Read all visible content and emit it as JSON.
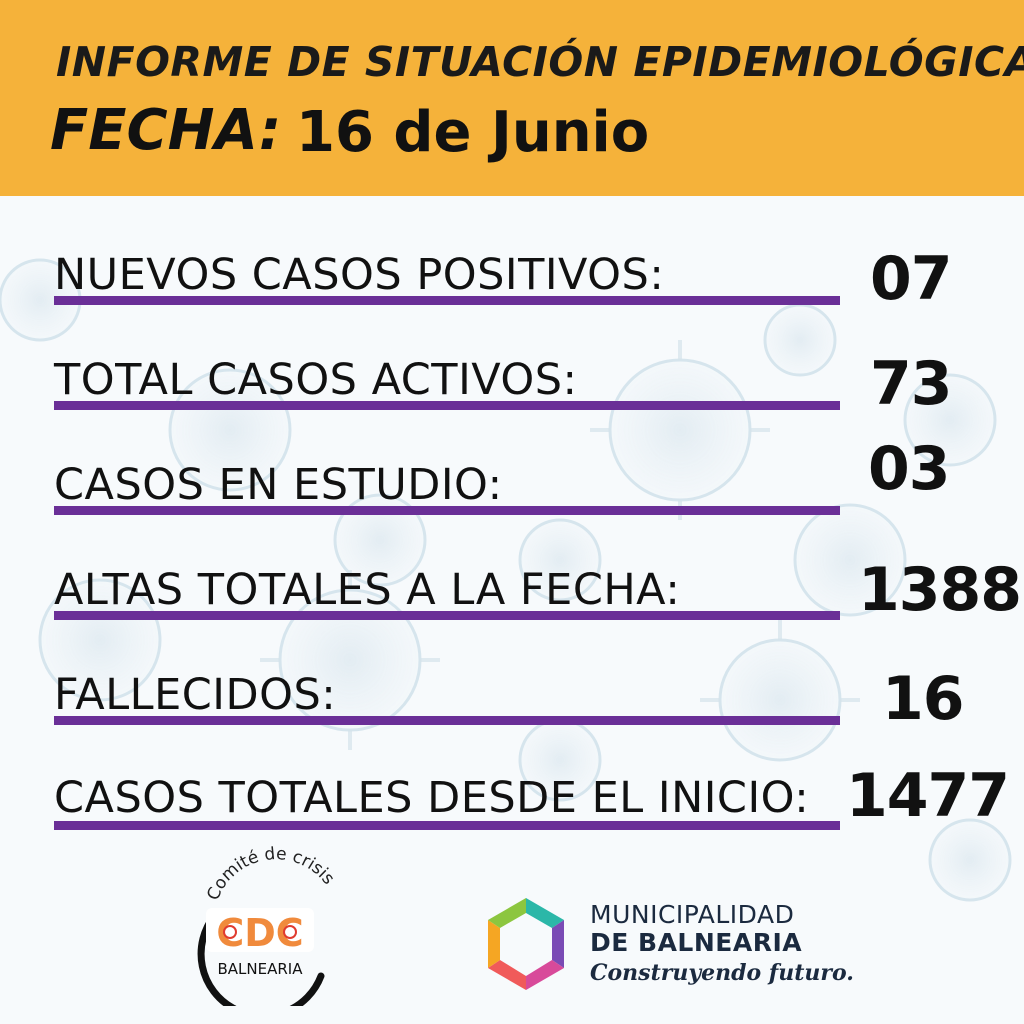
{
  "header": {
    "title": "INFORME DE SITUACIÓN EPIDEMIOLÓGICA",
    "fecha_label": "FECHA:",
    "fecha_value": "16 de Junio"
  },
  "stats": [
    {
      "label": "NUEVOS CASOS POSITIVOS:",
      "value": "07"
    },
    {
      "label": "TOTAL CASOS ACTIVOS:",
      "value": "73"
    },
    {
      "label": "CASOS EN ESTUDIO:",
      "value": "03"
    },
    {
      "label": "ALTAS TOTALES A LA FECHA:",
      "value": "1388"
    },
    {
      "label": "FALLECIDOS:",
      "value": "16"
    },
    {
      "label": "CASOS TOTALES DESDE EL INICIO:",
      "value": "1477"
    }
  ],
  "cdc_logo": {
    "arc_text": "Comité de crisis",
    "acronym": "CDC",
    "place": "BALNEARIA"
  },
  "municipality": {
    "line1": "MUNICIPALIDAD",
    "line2": "DE BALNEARIA",
    "slogan": "Construyendo futuro."
  },
  "colors": {
    "header_bg": "#f5b23a",
    "underline": "#6a2f97",
    "text": "#111111",
    "cdc_orange": "#f08a3c",
    "cdc_red": "#e03b2f"
  },
  "icons": [
    "virus-background",
    "cdc-logo",
    "municipality-hexagon-logo"
  ]
}
